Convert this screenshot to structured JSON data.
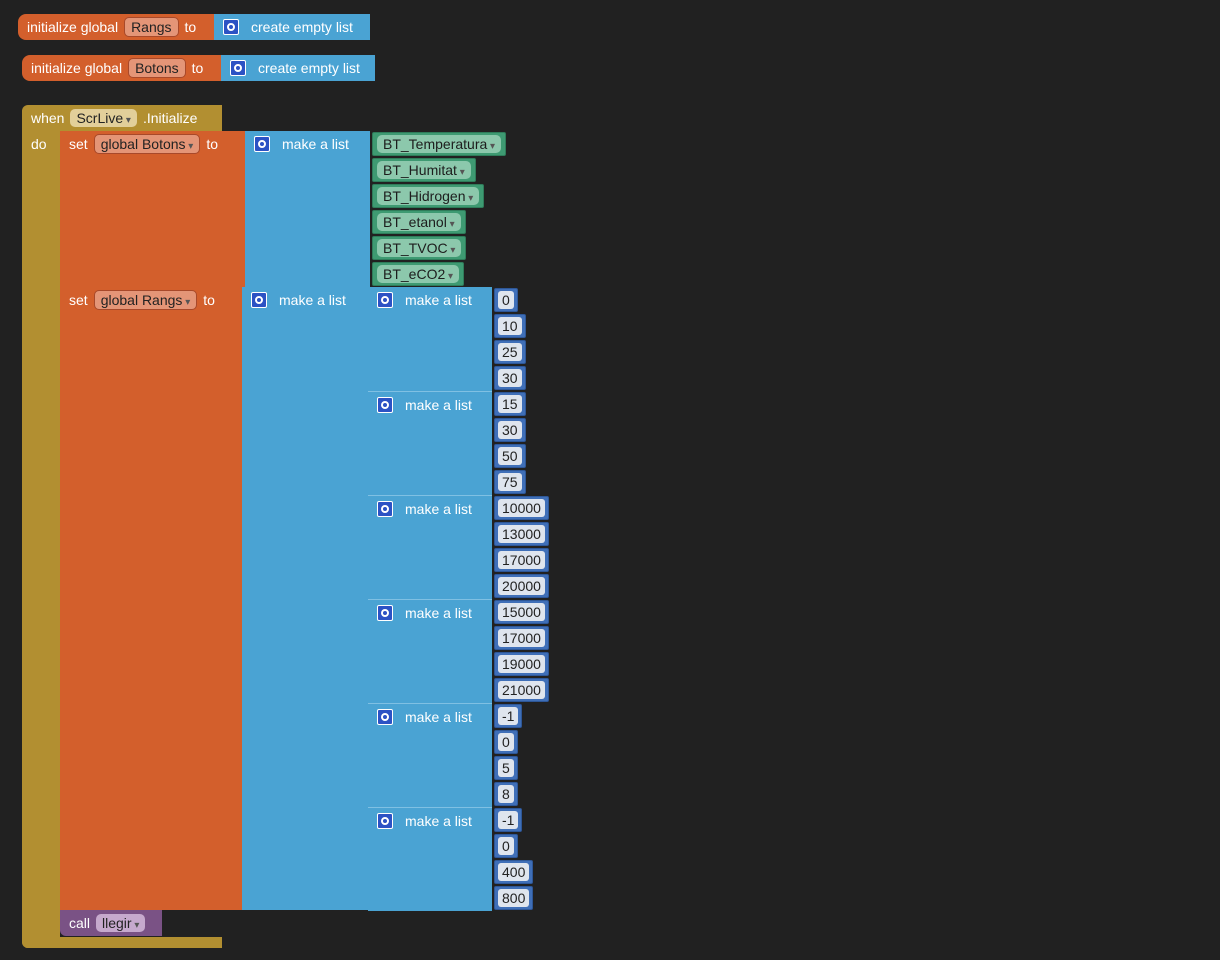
{
  "globals": [
    {
      "keyword": "initialize global",
      "name": "Rangs",
      "to": "to",
      "value": "create empty list"
    },
    {
      "keyword": "initialize global",
      "name": "Botons",
      "to": "to",
      "value": "create empty list"
    }
  ],
  "event": {
    "when": "when",
    "component": "ScrLive",
    "event": ".Initialize",
    "do": "do",
    "set_botons": {
      "set": "set",
      "variable": "global Botons",
      "to": "to",
      "make": "make a list",
      "items": [
        "BT_Temperatura",
        "BT_Humitat",
        "BT_Hidrogen",
        "BT_etanol",
        "BT_TVOC",
        "BT_eCO2"
      ]
    },
    "set_rangs": {
      "set": "set",
      "variable": "global Rangs",
      "to": "to",
      "make": "make a list",
      "sublists": [
        {
          "make": "make a list",
          "items": [
            0,
            10,
            25,
            30
          ]
        },
        {
          "make": "make a list",
          "items": [
            15,
            30,
            50,
            75
          ]
        },
        {
          "make": "make a list",
          "items": [
            10000,
            13000,
            17000,
            20000
          ]
        },
        {
          "make": "make a list",
          "items": [
            15000,
            17000,
            19000,
            21000
          ]
        },
        {
          "make": "make a list",
          "items": [
            -1,
            0,
            5,
            8
          ]
        },
        {
          "make": "make a list",
          "items": [
            -1,
            0,
            400,
            800
          ]
        }
      ]
    },
    "call": {
      "call": "call",
      "procedure": "llegir"
    }
  }
}
